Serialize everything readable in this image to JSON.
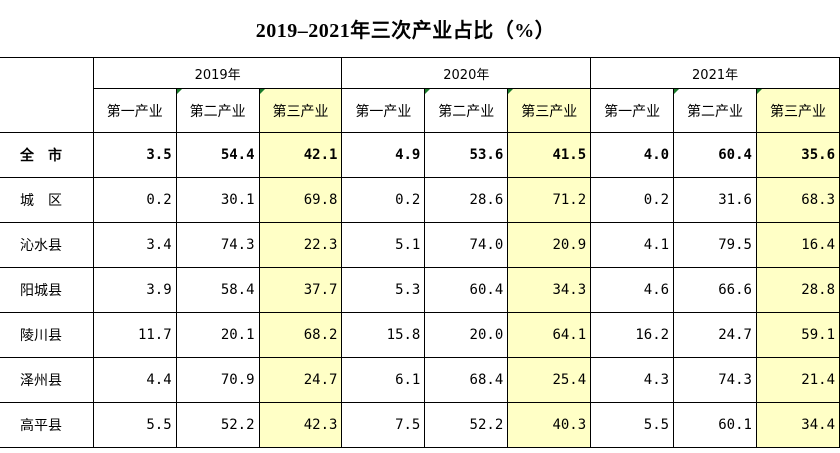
{
  "title": "2019–2021年三次产业占比（%）",
  "years": [
    "2019年",
    "2020年",
    "2021年"
  ],
  "sectors": [
    "第一产业",
    "第二产业",
    "第三产业"
  ],
  "rows": [
    {
      "region": "全　市",
      "v": [
        "3.5",
        "54.4",
        "42.1",
        "4.9",
        "53.6",
        "41.5",
        "4.0",
        "60.4",
        "35.6"
      ]
    },
    {
      "region": "城　区",
      "v": [
        "0.2",
        "30.1",
        "69.8",
        "0.2",
        "28.6",
        "71.2",
        "0.2",
        "31.6",
        "68.3"
      ]
    },
    {
      "region": "沁水县",
      "v": [
        "3.4",
        "74.3",
        "22.3",
        "5.1",
        "74.0",
        "20.9",
        "4.1",
        "79.5",
        "16.4"
      ]
    },
    {
      "region": "阳城县",
      "v": [
        "3.9",
        "58.4",
        "37.7",
        "5.3",
        "60.4",
        "34.3",
        "4.6",
        "66.6",
        "28.8"
      ]
    },
    {
      "region": "陵川县",
      "v": [
        "11.7",
        "20.1",
        "68.2",
        "15.8",
        "20.0",
        "64.1",
        "16.2",
        "24.7",
        "59.1"
      ]
    },
    {
      "region": "泽州县",
      "v": [
        "4.4",
        "70.9",
        "24.7",
        "6.1",
        "68.4",
        "25.4",
        "4.3",
        "74.3",
        "21.4"
      ]
    },
    {
      "region": "高平县",
      "v": [
        "5.5",
        "52.2",
        "42.3",
        "7.5",
        "52.2",
        "40.3",
        "5.5",
        "60.1",
        "34.4"
      ]
    }
  ],
  "colors": {
    "highlight": "#ffffc6",
    "marker": "#1a7a2a"
  }
}
